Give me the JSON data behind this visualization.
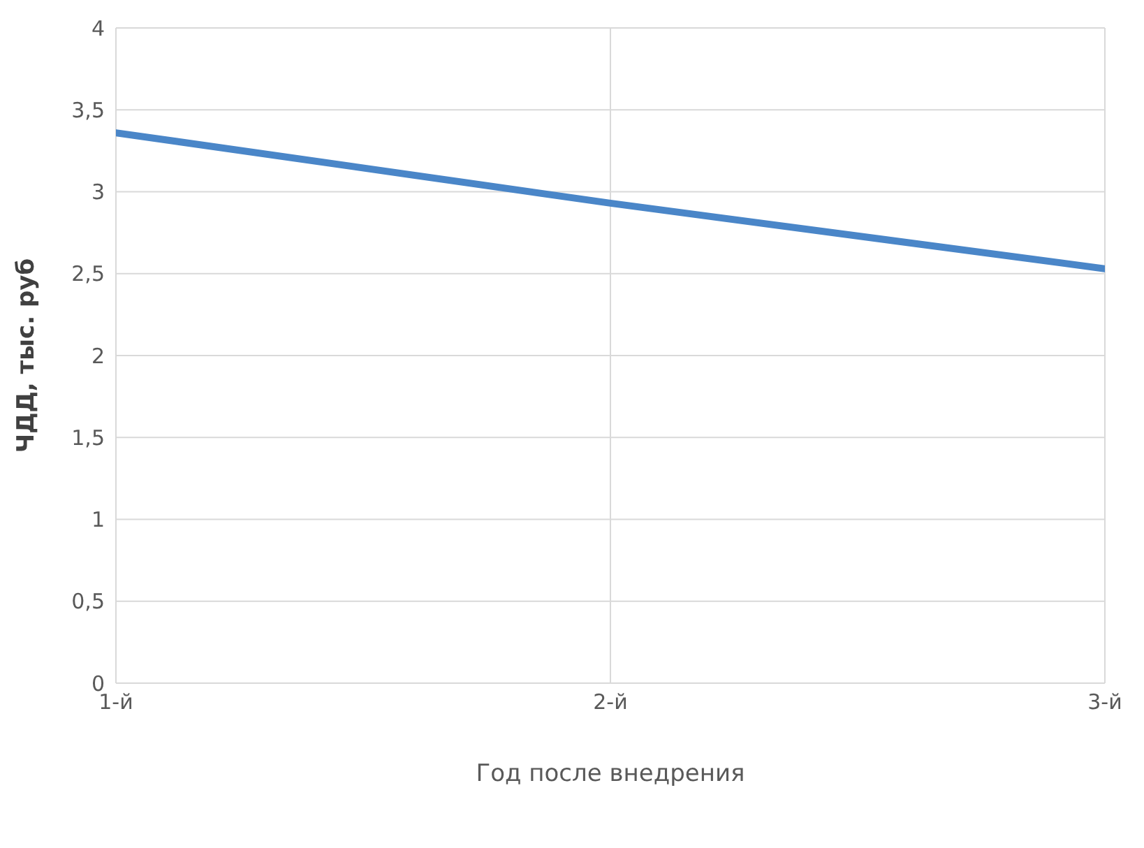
{
  "chart_data": {
    "type": "line",
    "xlabel": "Год после внедрения",
    "ylabel": "ЧДД, тыс. руб",
    "categories": [
      "1-й",
      "2-й",
      "3-й"
    ],
    "series": [
      {
        "color": "#4a86c8",
        "values": [
          3.36,
          2.93,
          2.53
        ]
      }
    ],
    "ylim": [
      0,
      4
    ],
    "yticks": [
      0,
      {
        "value": 0.5,
        "label": "0,5"
      },
      1,
      {
        "value": 1.5,
        "label": "1,5"
      },
      2,
      {
        "value": 2.5,
        "label": "2,5"
      },
      3,
      {
        "value": 3.5,
        "label": "3,5"
      },
      4
    ],
    "grid": true,
    "legend": false,
    "marker": "none",
    "line_style": "solid"
  }
}
